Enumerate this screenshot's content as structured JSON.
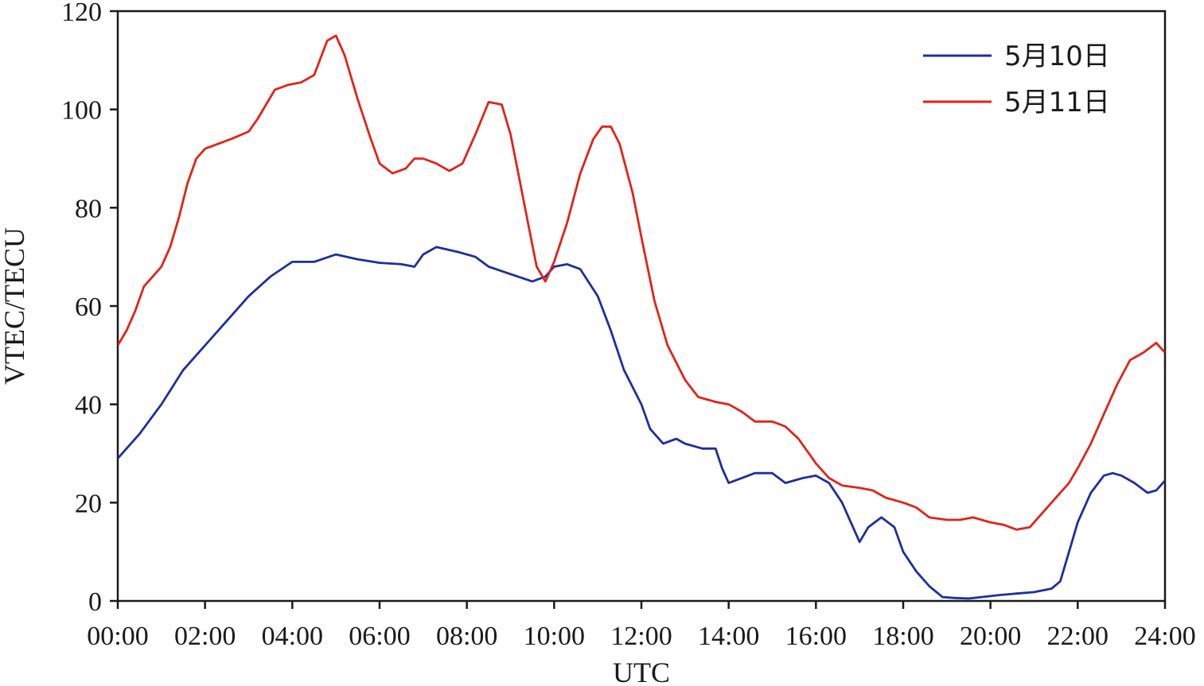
{
  "chart_data": {
    "type": "line",
    "title": "",
    "xlabel": "UTC",
    "ylabel": "VTEC/TECU",
    "xlim": [
      0,
      24
    ],
    "ylim": [
      0,
      120
    ],
    "x_ticks": [
      {
        "value": 0,
        "label": "00:00"
      },
      {
        "value": 2,
        "label": "02:00"
      },
      {
        "value": 4,
        "label": "04:00"
      },
      {
        "value": 6,
        "label": "06:00"
      },
      {
        "value": 8,
        "label": "08:00"
      },
      {
        "value": 10,
        "label": "10:00"
      },
      {
        "value": 12,
        "label": "12:00"
      },
      {
        "value": 14,
        "label": "14:00"
      },
      {
        "value": 16,
        "label": "16:00"
      },
      {
        "value": 18,
        "label": "18:00"
      },
      {
        "value": 20,
        "label": "20:00"
      },
      {
        "value": 22,
        "label": "22:00"
      },
      {
        "value": 24,
        "label": "24:00"
      }
    ],
    "y_ticks": [
      {
        "value": 0,
        "label": "0"
      },
      {
        "value": 20,
        "label": "20"
      },
      {
        "value": 40,
        "label": "40"
      },
      {
        "value": 60,
        "label": "60"
      },
      {
        "value": 80,
        "label": "80"
      },
      {
        "value": 100,
        "label": "100"
      },
      {
        "value": 120,
        "label": "120"
      }
    ],
    "grid": false,
    "legend_position": "top-right",
    "series": [
      {
        "name": "5月10日",
        "color": "#1f2f9a",
        "points": [
          [
            0,
            29
          ],
          [
            0.5,
            34
          ],
          [
            1,
            40
          ],
          [
            1.5,
            47
          ],
          [
            2,
            52
          ],
          [
            2.5,
            57
          ],
          [
            3,
            62
          ],
          [
            3.5,
            66
          ],
          [
            4,
            69
          ],
          [
            4.5,
            69
          ],
          [
            5,
            70.5
          ],
          [
            5.5,
            69.5
          ],
          [
            6,
            68.8
          ],
          [
            6.5,
            68.5
          ],
          [
            6.8,
            68
          ],
          [
            7,
            70.5
          ],
          [
            7.3,
            72
          ],
          [
            7.8,
            71
          ],
          [
            8.2,
            70
          ],
          [
            8.5,
            68
          ],
          [
            9,
            66.5
          ],
          [
            9.5,
            65
          ],
          [
            9.8,
            66
          ],
          [
            10,
            68
          ],
          [
            10.3,
            68.5
          ],
          [
            10.6,
            67.5
          ],
          [
            11,
            62
          ],
          [
            11.3,
            55
          ],
          [
            11.6,
            47
          ],
          [
            12,
            40
          ],
          [
            12.2,
            35
          ],
          [
            12.5,
            32
          ],
          [
            12.8,
            33
          ],
          [
            13,
            32
          ],
          [
            13.4,
            31
          ],
          [
            13.7,
            31
          ],
          [
            13.85,
            27
          ],
          [
            14,
            24
          ],
          [
            14.3,
            25
          ],
          [
            14.6,
            26
          ],
          [
            15,
            26
          ],
          [
            15.3,
            24
          ],
          [
            15.7,
            25
          ],
          [
            16,
            25.5
          ],
          [
            16.3,
            24
          ],
          [
            16.6,
            20
          ],
          [
            17,
            12
          ],
          [
            17.2,
            15
          ],
          [
            17.5,
            17
          ],
          [
            17.8,
            15
          ],
          [
            18,
            10
          ],
          [
            18.3,
            6
          ],
          [
            18.6,
            3
          ],
          [
            18.9,
            0.8
          ],
          [
            19.2,
            0.6
          ],
          [
            19.5,
            0.5
          ],
          [
            19.8,
            0.8
          ],
          [
            20.2,
            1.2
          ],
          [
            20.6,
            1.5
          ],
          [
            21,
            1.8
          ],
          [
            21.4,
            2.5
          ],
          [
            21.6,
            4
          ],
          [
            21.8,
            10
          ],
          [
            22,
            16
          ],
          [
            22.3,
            22
          ],
          [
            22.6,
            25.5
          ],
          [
            22.8,
            26
          ],
          [
            23,
            25.5
          ],
          [
            23.3,
            24
          ],
          [
            23.6,
            22
          ],
          [
            23.8,
            22.5
          ],
          [
            24,
            24.5
          ]
        ]
      },
      {
        "name": "5月11日",
        "color": "#e22319",
        "points": [
          [
            0,
            52
          ],
          [
            0.2,
            55
          ],
          [
            0.4,
            59
          ],
          [
            0.6,
            64
          ],
          [
            0.8,
            66
          ],
          [
            1,
            68
          ],
          [
            1.2,
            72
          ],
          [
            1.4,
            78
          ],
          [
            1.6,
            85
          ],
          [
            1.8,
            90
          ],
          [
            2,
            92
          ],
          [
            2.3,
            93
          ],
          [
            2.6,
            94
          ],
          [
            3,
            95.5
          ],
          [
            3.2,
            98
          ],
          [
            3.4,
            101
          ],
          [
            3.6,
            104
          ],
          [
            3.9,
            105
          ],
          [
            4.2,
            105.5
          ],
          [
            4.5,
            107
          ],
          [
            4.8,
            114
          ],
          [
            5,
            115
          ],
          [
            5.2,
            111
          ],
          [
            5.5,
            102
          ],
          [
            5.8,
            94
          ],
          [
            6,
            89
          ],
          [
            6.3,
            87
          ],
          [
            6.6,
            88
          ],
          [
            6.8,
            90
          ],
          [
            7,
            90
          ],
          [
            7.3,
            89
          ],
          [
            7.6,
            87.5
          ],
          [
            7.9,
            89
          ],
          [
            8.2,
            95
          ],
          [
            8.5,
            101.5
          ],
          [
            8.8,
            101
          ],
          [
            9,
            95
          ],
          [
            9.2,
            86
          ],
          [
            9.4,
            77
          ],
          [
            9.6,
            68
          ],
          [
            9.8,
            65
          ],
          [
            10,
            69
          ],
          [
            10.3,
            77
          ],
          [
            10.6,
            87
          ],
          [
            10.9,
            94
          ],
          [
            11.1,
            96.5
          ],
          [
            11.3,
            96.5
          ],
          [
            11.5,
            93
          ],
          [
            11.8,
            83
          ],
          [
            12,
            74
          ],
          [
            12.3,
            61
          ],
          [
            12.6,
            52
          ],
          [
            13,
            45
          ],
          [
            13.3,
            41.5
          ],
          [
            13.7,
            40.5
          ],
          [
            14,
            40
          ],
          [
            14.3,
            38.5
          ],
          [
            14.6,
            36.5
          ],
          [
            15,
            36.5
          ],
          [
            15.3,
            35.5
          ],
          [
            15.6,
            33
          ],
          [
            16,
            28
          ],
          [
            16.3,
            25
          ],
          [
            16.6,
            23.5
          ],
          [
            17,
            23
          ],
          [
            17.3,
            22.5
          ],
          [
            17.6,
            21
          ],
          [
            18,
            20
          ],
          [
            18.3,
            19
          ],
          [
            18.6,
            17
          ],
          [
            19,
            16.5
          ],
          [
            19.3,
            16.5
          ],
          [
            19.6,
            17
          ],
          [
            20,
            16
          ],
          [
            20.3,
            15.5
          ],
          [
            20.6,
            14.5
          ],
          [
            20.9,
            15
          ],
          [
            21.2,
            18
          ],
          [
            21.5,
            21
          ],
          [
            21.8,
            24
          ],
          [
            22,
            27
          ],
          [
            22.3,
            32
          ],
          [
            22.6,
            38
          ],
          [
            22.9,
            44
          ],
          [
            23.2,
            49
          ],
          [
            23.5,
            50.5
          ],
          [
            23.8,
            52.5
          ],
          [
            24,
            50.5
          ]
        ]
      }
    ]
  }
}
